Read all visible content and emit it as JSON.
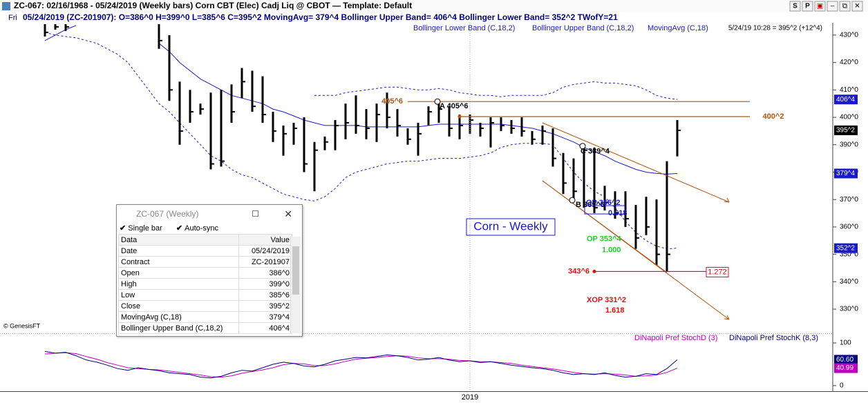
{
  "window": {
    "title": "ZC-067:  02/16/1968 - 05/24/2019  (Weekly bars)   Corn CBT (Elec) Cadj Liq @ CBOT  —  Template: Default",
    "buttons": [
      "S",
      "P"
    ]
  },
  "info": {
    "day": "Fri",
    "text": "05/24/2019 (ZC-201907):  O=386^0  H=399^0  L=385^6  C=395^2  MovingAvg= 379^4  Bollinger Upper Band= 406^4  Bollinger Lower Band= 352^2  TWofY=21"
  },
  "chart_data": [
    {
      "type": "ohlc",
      "title": "Corn - Weekly",
      "note": "5/24/19 10:28 = 395^2 (+12^4)",
      "copyright": "© GenesisFT",
      "categories": [
        null,
        null,
        null,
        null,
        null,
        null,
        null,
        null,
        null,
        null,
        null,
        null,
        null,
        null,
        null,
        null,
        null,
        null,
        null,
        null,
        null,
        null,
        null,
        null,
        null,
        null,
        null,
        null,
        null,
        null,
        null,
        null,
        null,
        null,
        null,
        null,
        null,
        null,
        null,
        null,
        null,
        "2019",
        null,
        null,
        null,
        null,
        null,
        null,
        null,
        null,
        null,
        null,
        null,
        null,
        null,
        null,
        null,
        null,
        null,
        null,
        null,
        null
      ],
      "high": [
        434,
        434,
        434,
        null,
        null,
        null,
        null,
        null,
        null,
        null,
        null,
        434,
        430,
        413,
        410,
        405,
        409,
        410,
        412,
        418,
        417,
        415,
        402,
        397,
        398,
        400,
        391,
        393,
        399,
        405,
        408,
        403,
        405,
        409,
        403,
        396,
        398,
        404,
        405.75,
        404,
        401,
        401,
        398,
        400,
        400,
        399,
        400,
        395,
        397,
        396,
        387,
        385,
        389.5,
        389,
        375,
        373,
        373,
        368,
        371,
        370,
        384,
        399
      ],
      "low": [
        429.5,
        432,
        431.5,
        null,
        null,
        null,
        null,
        null,
        null,
        null,
        null,
        425,
        406,
        390,
        398,
        401,
        381,
        382,
        398,
        407,
        402,
        398,
        391,
        386,
        390,
        380,
        373,
        388,
        388,
        392,
        394,
        392,
        391,
        396,
        393,
        390,
        386,
        397,
        398,
        393,
        392,
        394,
        393,
        389,
        395,
        394,
        393,
        390,
        390,
        382,
        372,
        370,
        367,
        365,
        366,
        363,
        360,
        352,
        357,
        346,
        343.75,
        385.75
      ],
      "close": [
        431,
        433,
        433,
        null,
        null,
        null,
        null,
        null,
        null,
        null,
        null,
        428,
        410,
        395,
        402,
        403,
        383,
        384,
        402,
        413,
        404,
        401,
        395,
        394,
        396,
        383,
        388,
        391,
        397,
        398,
        397,
        396,
        401,
        400,
        397,
        392,
        394,
        402,
        403,
        396,
        397,
        399,
        396,
        398,
        397,
        396,
        395,
        392,
        395,
        385,
        376,
        373,
        388,
        367,
        369,
        365,
        363,
        356,
        360,
        350,
        350,
        395.25
      ],
      "color": "#000000",
      "overlays": [
        {
          "name": "Bollinger Lower Band (C,18,2)",
          "color": "#1a1acc",
          "dashed": true,
          "values": [
            431,
            430,
            429.5,
            429,
            428,
            427,
            425,
            423,
            420,
            415,
            410,
            405,
            402,
            398,
            394,
            390,
            386,
            384,
            381,
            379,
            378,
            376,
            374,
            372,
            371,
            370,
            369.5,
            371,
            374,
            378,
            380,
            381,
            382,
            383,
            383.5,
            384,
            384,
            384.5,
            385,
            385,
            385,
            385.5,
            386,
            387,
            389,
            390,
            390.5,
            390.5,
            390.5,
            390,
            385,
            380,
            376,
            373,
            371,
            367,
            362,
            358,
            355,
            353,
            352,
            352.25
          ]
        },
        {
          "name": "Bollinger Upper Band (C,18,2)",
          "color": "#1a1acc",
          "dashed": true,
          "values": [
            null,
            null,
            null,
            null,
            null,
            null,
            null,
            null,
            null,
            null,
            null,
            null,
            null,
            null,
            null,
            null,
            null,
            null,
            null,
            null,
            null,
            null,
            null,
            null,
            null,
            null,
            408,
            408,
            408,
            409,
            409.5,
            410,
            410.5,
            411,
            411,
            410.5,
            410,
            410,
            410.5,
            410,
            409,
            408.5,
            408,
            408,
            407.5,
            408,
            408,
            408,
            408,
            409,
            411,
            412,
            412.5,
            413,
            412.5,
            412.5,
            412,
            411.5,
            410,
            408,
            407,
            406.5
          ]
        },
        {
          "name": "MovingAvg (C,18)",
          "color": "#1a1acc",
          "dashed": false,
          "values": [
            428,
            430,
            432,
            433.5,
            null,
            null,
            null,
            null,
            null,
            null,
            null,
            427,
            424,
            420,
            417,
            414,
            412,
            410,
            408,
            407,
            406,
            405,
            403,
            402,
            400.5,
            399,
            398,
            397,
            397,
            397,
            397,
            396.5,
            396.5,
            396.5,
            396.5,
            396.5,
            396.5,
            397,
            397.5,
            397.5,
            397.5,
            397.5,
            397.5,
            397.5,
            397.5,
            397,
            396.5,
            396,
            395,
            394,
            392.5,
            391,
            389,
            387.5,
            386,
            384,
            382.5,
            381,
            380,
            379.5,
            379.25,
            379.5
          ]
        }
      ],
      "ylim": [
        321.2,
        434.5
      ],
      "yticks": [
        {
          "value": 330,
          "label": "330^0"
        },
        {
          "value": 340,
          "label": "340^0"
        },
        {
          "value": 350,
          "label": "350^0"
        },
        {
          "value": 360,
          "label": "360^0"
        },
        {
          "value": 370,
          "label": "370^0"
        },
        {
          "value": 380,
          "label": "380^0"
        },
        {
          "value": 390,
          "label": "390^0"
        },
        {
          "value": 400,
          "label": "400^0"
        },
        {
          "value": 410,
          "label": "410^0"
        },
        {
          "value": 420,
          "label": "420^0"
        },
        {
          "value": 430,
          "label": "430^0"
        }
      ],
      "flags": [
        {
          "value": 406.5,
          "label": "406^4",
          "color": "#1a1acc"
        },
        {
          "value": 395.25,
          "label": "395^2",
          "color": "#000000"
        },
        {
          "value": 379.5,
          "label": "379^4",
          "color": "#1a1acc"
        },
        {
          "value": 352.25,
          "label": "352^2",
          "color": "#1a1acc"
        }
      ],
      "annotations": [
        {
          "label": "405^6",
          "value": 405.75,
          "color": "#b5520c"
        },
        {
          "label": "A 405^6",
          "value": 405.75,
          "color": "#000000"
        },
        {
          "label": "400^2",
          "value": 400.25,
          "color": "#b5520c"
        },
        {
          "label": "C 389^4",
          "value": 389.5,
          "color": "#000000"
        },
        {
          "label": "B 369^6",
          "value": 369.75,
          "color": "#000000"
        },
        {
          "label": "OP 366^2",
          "value": 366.25,
          "color": "#1a1acc",
          "ratio": 0.618
        },
        {
          "label": "OP 353^4",
          "value": 353.5,
          "color": "#22cc22",
          "ratio": {
            "value": 1,
            "label": "1.000"
          }
        },
        {
          "label": "343^6",
          "value": 343.75,
          "color": "#dd1111",
          "ratio": 1.272
        },
        {
          "label": "XOP 331^2",
          "value": 331.25,
          "color": "#dd1111",
          "ratio": 1.618
        }
      ]
    },
    {
      "type": "line",
      "series": [
        {
          "name": "DiNapoli Pref StochD (3)",
          "color": "#c000c0",
          "values": [
            74,
            76,
            77,
            75,
            68,
            62,
            54,
            48,
            42,
            40,
            38,
            37,
            34,
            31,
            28,
            25,
            21,
            20,
            23,
            29,
            33,
            37,
            42,
            49,
            52,
            51,
            47,
            47,
            51,
            57,
            62,
            64,
            66,
            68,
            70,
            69,
            65,
            63,
            63,
            62,
            59,
            58,
            56,
            56,
            54,
            52,
            48,
            45,
            42,
            39,
            35,
            31,
            28,
            27,
            28,
            27,
            25,
            22,
            23,
            25,
            31,
            40.99
          ]
        },
        {
          "name": "DiNapoli Pref StochK (8,3)",
          "color": "#000080",
          "values": [
            80,
            76,
            78,
            70,
            60,
            55,
            48,
            40,
            36,
            42,
            38,
            35,
            30,
            28,
            26,
            20,
            18,
            22,
            30,
            36,
            34,
            42,
            50,
            55,
            52,
            46,
            44,
            50,
            58,
            62,
            66,
            65,
            68,
            72,
            70,
            66,
            60,
            62,
            66,
            60,
            56,
            58,
            54,
            56,
            52,
            48,
            45,
            42,
            40,
            36,
            30,
            26,
            28,
            26,
            30,
            24,
            20,
            22,
            28,
            26,
            40,
            60.6
          ]
        }
      ],
      "ylim": [
        -12.9,
        122.6
      ],
      "yticks": [
        0,
        100
      ],
      "flags": [
        {
          "value": 60.6,
          "label": "60.60",
          "color": "#000080"
        },
        {
          "value": 40.99,
          "color": "#c000c0"
        }
      ]
    }
  ],
  "data_window": {
    "title": "ZC-067 (Weekly)",
    "options": [
      "Single bar",
      "Auto-sync"
    ],
    "columns": [
      "Data",
      "Value"
    ],
    "rows": [
      [
        "Date",
        "05/24/2019"
      ],
      [
        "Contract",
        "ZC-201907"
      ],
      [
        "Open",
        "386^0"
      ],
      [
        "High",
        "399^0"
      ],
      [
        "Low",
        "385^6"
      ],
      [
        "Close",
        "395^2"
      ],
      [
        "MovingAvg (C,18)",
        "379^4"
      ],
      [
        "Bollinger Upper Band (C,18,2)",
        "406^4"
      ]
    ]
  }
}
